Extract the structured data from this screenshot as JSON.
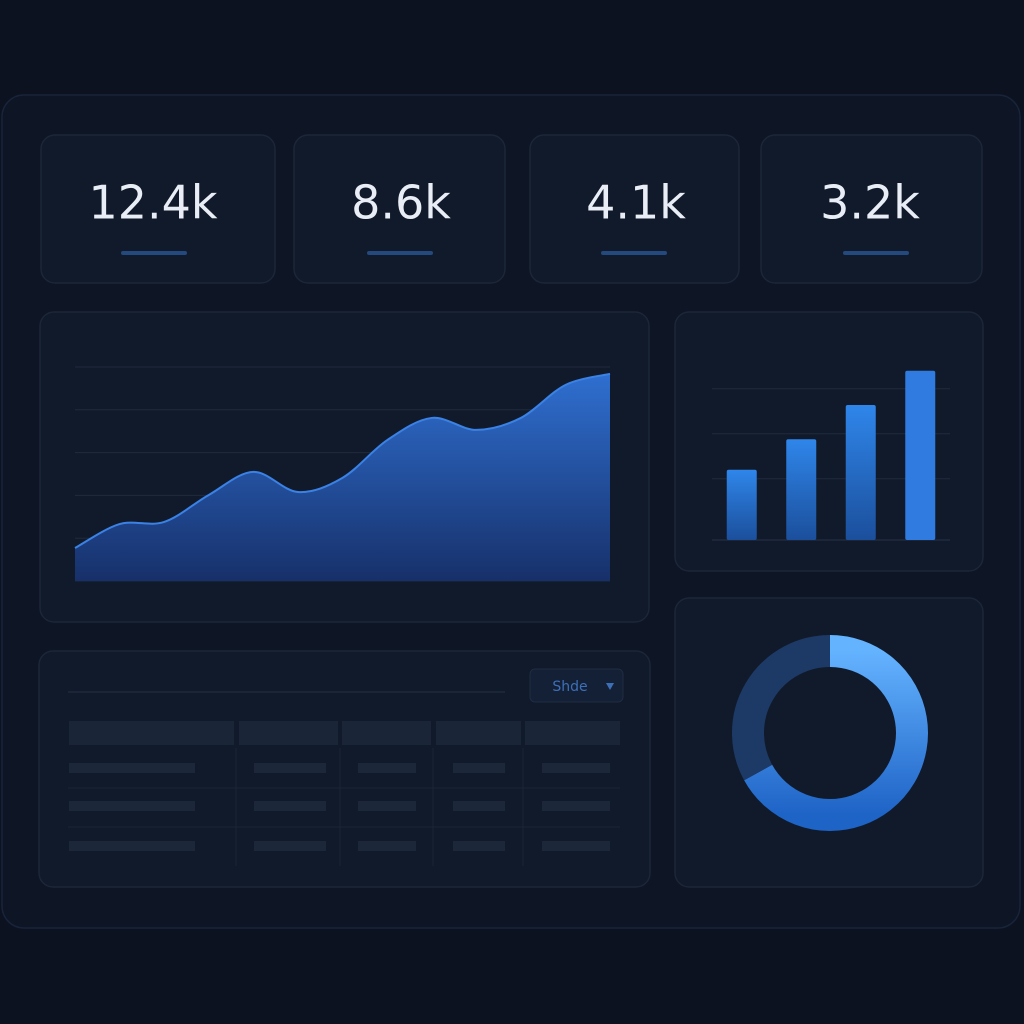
{
  "kpis": [
    {
      "value": "12.4k"
    },
    {
      "value": "8.6k"
    },
    {
      "value": "4.1k"
    },
    {
      "value": "3.2k"
    }
  ],
  "area_chart": {
    "type": "area",
    "values": [
      0.77,
      1.33,
      1.38,
      2.01,
      2.55,
      2.08,
      2.41,
      3.29,
      3.81,
      3.53,
      3.81,
      4.58,
      4.84
    ],
    "ylim": [
      0,
      5
    ],
    "gridlines": [
      1,
      2,
      3,
      4,
      5
    ],
    "color": "#3b82e6"
  },
  "bar_chart": {
    "type": "bar",
    "values": [
      39,
      56,
      75,
      94
    ],
    "ylim": [
      0,
      100
    ],
    "gridlines": [
      34,
      59,
      84
    ],
    "color": "#2f7be0"
  },
  "donut_chart": {
    "type": "donut",
    "segments": [
      {
        "value": 67,
        "color": "#4a9bf5"
      },
      {
        "value": 33,
        "color": "#1d3a66"
      }
    ]
  },
  "table": {
    "dropdown": "Shde"
  }
}
